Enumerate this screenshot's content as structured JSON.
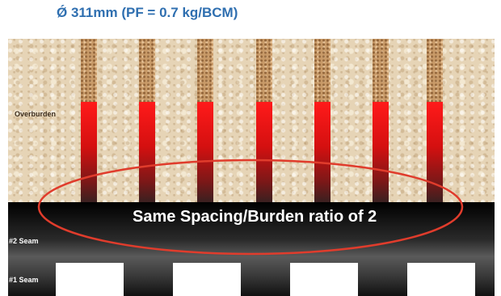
{
  "title": "Ǿ 311mm (PF = 0.7 kg/BCM)",
  "labels": {
    "overburden": "Overburden",
    "seam2": "#2 Seam",
    "seam1": "#1 Seam"
  },
  "annotation": "Same Spacing/Burden ratio of 2",
  "colors": {
    "title": "#2f6fb0",
    "charge": "#e81c1c",
    "ellipse": "#e03c2c"
  }
}
